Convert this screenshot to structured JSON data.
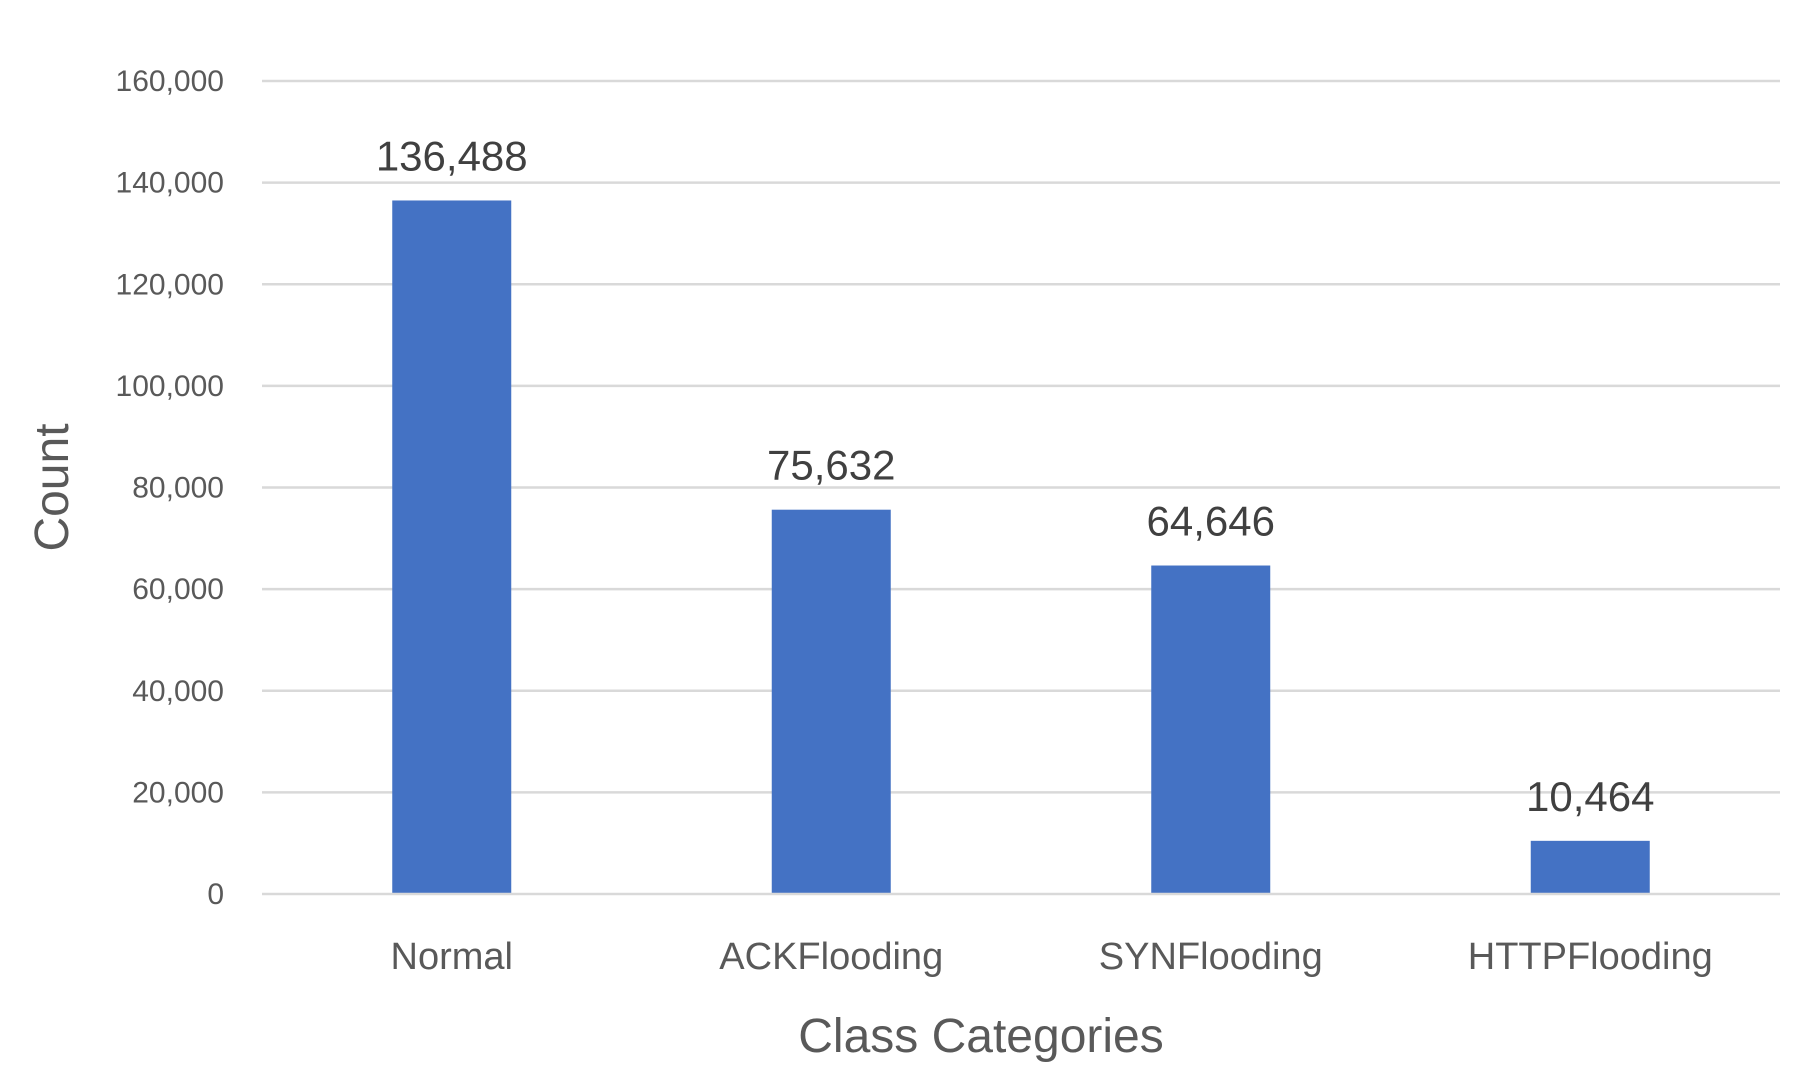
{
  "chart_data": {
    "type": "bar",
    "categories": [
      "Normal",
      "ACKFlooding",
      "SYNFlooding",
      "HTTPFlooding"
    ],
    "series": [
      {
        "values": [
          136488,
          75632,
          64646,
          10464
        ],
        "color": "#4472c4"
      }
    ],
    "data_labels": [
      "136,488",
      "75,632",
      "64,646",
      "10,464"
    ],
    "xlabel": "Class Categories",
    "ylabel": "Count",
    "ylim": [
      0,
      160000
    ],
    "yticks": [
      0,
      20000,
      40000,
      60000,
      80000,
      100000,
      120000,
      140000,
      160000
    ],
    "ytick_labels": [
      "0",
      "20,000",
      "40,000",
      "60,000",
      "80,000",
      "100,000",
      "120,000",
      "140,000",
      "160,000"
    ],
    "grid": true,
    "legend": "none"
  }
}
